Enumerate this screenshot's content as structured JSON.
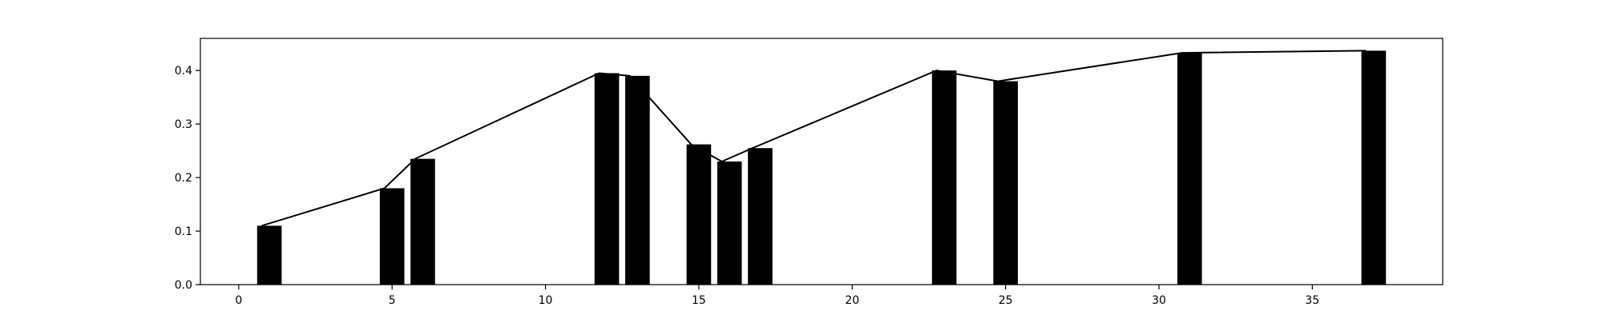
{
  "chart_data": {
    "type": "bar",
    "title": "",
    "xlabel": "",
    "ylabel": "",
    "xlim": [
      -1.25,
      39.25
    ],
    "ylim": [
      0.0,
      0.46
    ],
    "grid": false,
    "legend": "none",
    "x_ticks": [
      0,
      5,
      10,
      15,
      20,
      25,
      30,
      35
    ],
    "y_ticks": [
      0.0,
      0.1,
      0.2,
      0.3,
      0.4
    ],
    "x_tick_labels": [
      "0",
      "5",
      "10",
      "15",
      "20",
      "25",
      "30",
      "35"
    ],
    "y_tick_labels": [
      "0.0",
      "0.1",
      "0.2",
      "0.3",
      "0.4"
    ],
    "bar_color": "#000000",
    "line_color": "#000000",
    "series": [
      {
        "type": "bar",
        "x": [
          1,
          5,
          6,
          12,
          13,
          15,
          16,
          17,
          23,
          25,
          31,
          37
        ],
        "values": [
          0.11,
          0.18,
          0.235,
          0.395,
          0.39,
          0.262,
          0.23,
          0.255,
          0.4,
          0.38,
          0.433,
          0.437
        ]
      },
      {
        "type": "line",
        "x": [
          0.75,
          4.75,
          5.75,
          11.75,
          12.75,
          14.75,
          15.75,
          16.75,
          22.75,
          24.75,
          30.75,
          36.75
        ],
        "values": [
          0.11,
          0.18,
          0.235,
          0.395,
          0.39,
          0.262,
          0.23,
          0.255,
          0.4,
          0.38,
          0.433,
          0.437
        ]
      }
    ]
  }
}
